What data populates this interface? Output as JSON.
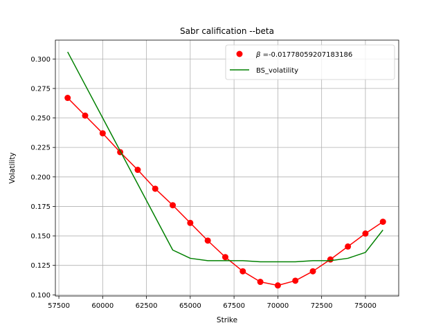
{
  "chart_data": {
    "type": "line",
    "title": "Sabr calification --beta",
    "xlabel": "Strike",
    "ylabel": "Volatility",
    "xlim": [
      57300,
      76900
    ],
    "ylim": [
      0.099,
      0.316
    ],
    "grid": true,
    "legend_position": "top-right",
    "x_ticks": [
      57500,
      60000,
      62500,
      65000,
      67500,
      70000,
      72500,
      75000
    ],
    "x_tick_labels": [
      "57500",
      "60000",
      "62500",
      "65000",
      "67500",
      "70000",
      "72500",
      "75000"
    ],
    "y_ticks": [
      0.1,
      0.125,
      0.15,
      0.175,
      0.2,
      0.225,
      0.25,
      0.275,
      0.3
    ],
    "y_tick_labels": [
      "0.100",
      "0.125",
      "0.150",
      "0.175",
      "0.200",
      "0.225",
      "0.250",
      "0.275",
      "0.300"
    ],
    "series": [
      {
        "name": "β =-0.01778059207183186",
        "legend_prefix": "β",
        "legend_rest": " =-0.01778059207183186",
        "style": "line-markers",
        "color": "#ff0000",
        "x": [
          58000,
          59000,
          60000,
          61000,
          62000,
          63000,
          64000,
          65000,
          66000,
          67000,
          68000,
          69000,
          70000,
          71000,
          72000,
          73000,
          74000,
          75000,
          76000
        ],
        "y": [
          0.267,
          0.252,
          0.237,
          0.221,
          0.206,
          0.19,
          0.176,
          0.161,
          0.146,
          0.132,
          0.12,
          0.111,
          0.108,
          0.112,
          0.12,
          0.13,
          0.141,
          0.152,
          0.162
        ]
      },
      {
        "name": "BS_volatility",
        "style": "line",
        "color": "#008000",
        "x": [
          58000,
          59000,
          60000,
          61000,
          62000,
          63000,
          64000,
          65000,
          66000,
          67000,
          68000,
          69000,
          70000,
          71000,
          72000,
          73000,
          74000,
          75000,
          76000
        ],
        "y": [
          0.306,
          0.278,
          0.25,
          0.222,
          0.194,
          0.166,
          0.138,
          0.131,
          0.129,
          0.129,
          0.129,
          0.128,
          0.128,
          0.128,
          0.129,
          0.129,
          0.131,
          0.136,
          0.155
        ]
      }
    ]
  }
}
